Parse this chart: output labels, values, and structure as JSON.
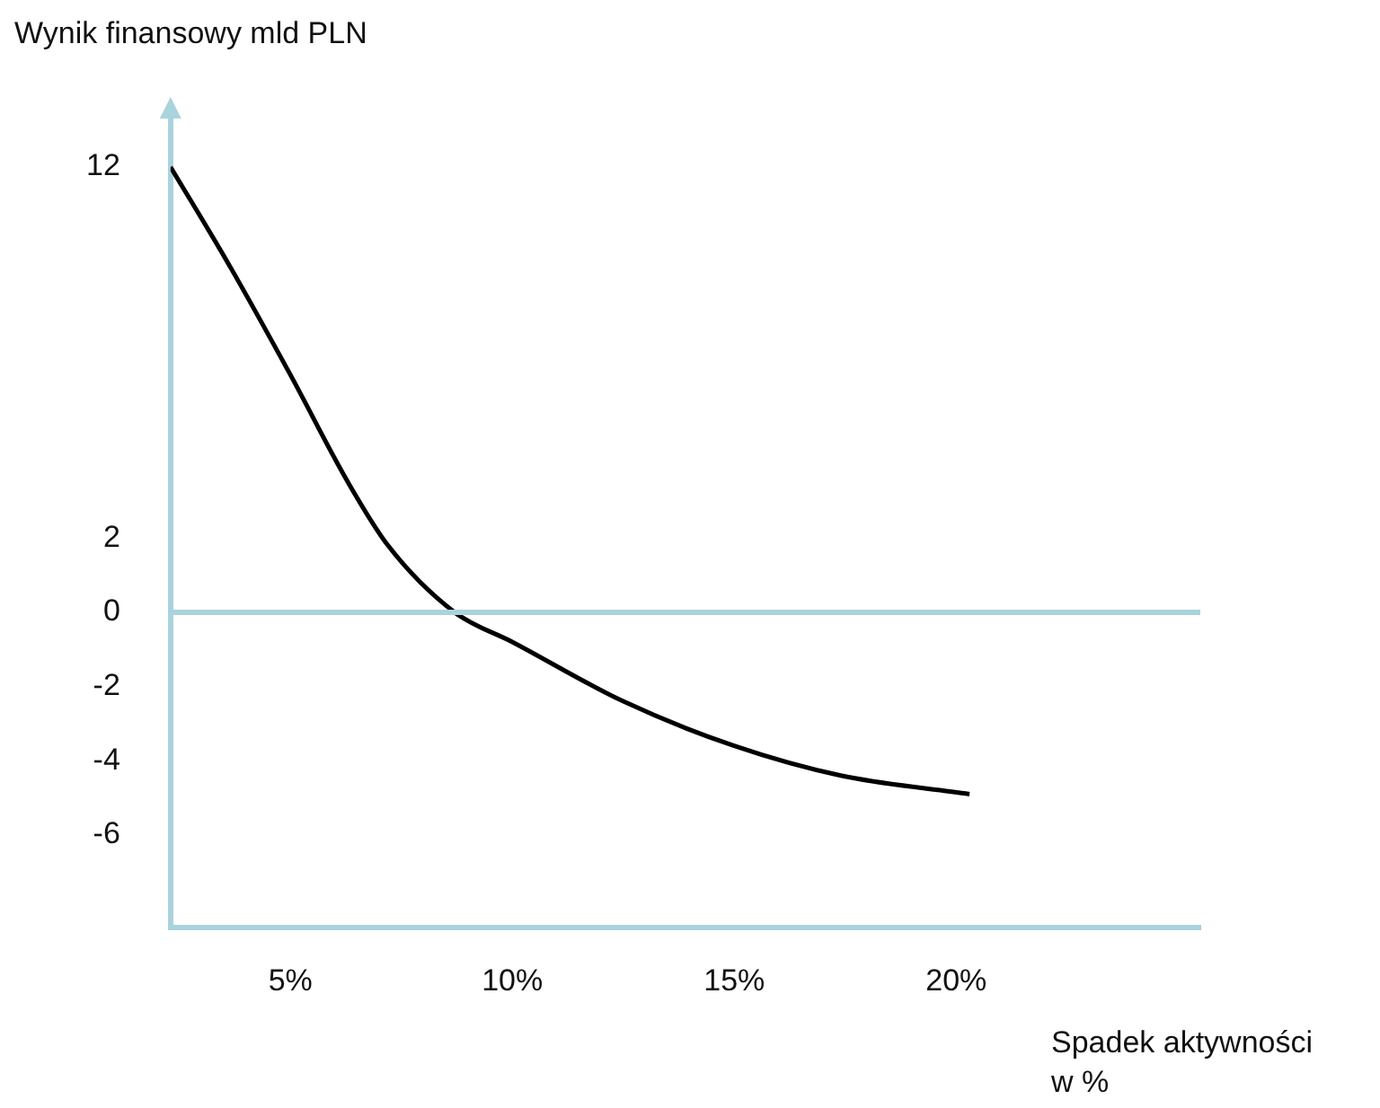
{
  "chart_data": {
    "type": "line",
    "xlabel": "Spadek aktywności w %",
    "ylabel": "Wynik finansowy mld PLN",
    "series": [
      {
        "color": "#000000",
        "x": [
          2.3,
          3.6,
          5,
          6.3,
          7.2,
          8.7,
          10,
          12.5,
          15,
          17.4,
          20.3
        ],
        "values": [
          12,
          9.4,
          6.4,
          3.5,
          1.8,
          0,
          -0.8,
          -2.4,
          -3.6,
          -4.4,
          -4.9
        ]
      }
    ],
    "xlim": [
      2.3,
      25.5
    ],
    "xticks": [
      {
        "value": 5,
        "label": "5%"
      },
      {
        "value": 10,
        "label": "10%"
      },
      {
        "value": 15,
        "label": "15%"
      },
      {
        "value": 20,
        "label": "20%"
      }
    ],
    "ylim": [
      -8.5,
      13.5
    ],
    "yticks": [
      12,
      2,
      0,
      -2,
      -4,
      -6
    ],
    "ref_lines": [
      {
        "axis": "y",
        "value": 0,
        "color": "#a9d3dd"
      }
    ],
    "grid": false,
    "legend": false,
    "marker": "none",
    "line_style": "solid"
  }
}
